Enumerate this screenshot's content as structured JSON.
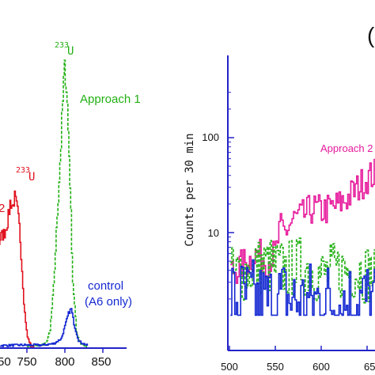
{
  "colors": {
    "green": "#22b014",
    "red": "#e0121e",
    "blue": "#1428d2",
    "magenta": "#e61a9c",
    "axis": "#2323c8",
    "text": "#111111"
  },
  "chart_data": [
    {
      "type": "line",
      "panel": "left (cropped)",
      "xlabel": "",
      "ylabel": "",
      "xlim": [
        700,
        850
      ],
      "x_ticks": [
        750,
        800,
        850
      ],
      "x_tick_labels": [
        "750",
        "800",
        "850"
      ],
      "x_tick_partial_label": "50",
      "grid": false,
      "annotations": [
        {
          "text_super": "233",
          "text_main": "U",
          "near_series": "Approach 1 (green)"
        },
        {
          "text_super": "233",
          "text_main": "U",
          "near_series": "Approach 2 (red)"
        },
        {
          "text": "Approach 1",
          "series": "green"
        },
        {
          "text": "control",
          "series": "blue"
        },
        {
          "text": "(A6 only)",
          "series": "blue"
        },
        {
          "text": "2",
          "series": "red",
          "note": "partially cropped label"
        }
      ],
      "series": [
        {
          "name": "Approach 1",
          "color": "#22b014",
          "style": "dashed",
          "x": [
            750,
            765,
            775,
            780,
            785,
            790,
            795,
            798,
            800,
            802,
            806,
            810,
            815,
            820,
            830
          ],
          "y": [
            0,
            2,
            6,
            22,
            85,
            190,
            290,
            360,
            382,
            350,
            240,
            90,
            20,
            5,
            0
          ]
        },
        {
          "name": "Approach 2",
          "color": "#e0121e",
          "style": "solid",
          "x": [
            700,
            705,
            710,
            715,
            720,
            725,
            728,
            731,
            733,
            735,
            737,
            740,
            743,
            746,
            750,
            755,
            760
          ],
          "y": [
            90,
            110,
            130,
            150,
            155,
            175,
            200,
            190,
            205,
            195,
            185,
            160,
            110,
            55,
            15,
            2,
            0
          ]
        },
        {
          "name": "control (A6 only)",
          "color": "#1428d2",
          "style": "solid",
          "x": [
            700,
            740,
            770,
            785,
            795,
            800,
            805,
            808,
            812,
            818,
            830
          ],
          "y": [
            2,
            3,
            3,
            5,
            12,
            30,
            48,
            52,
            30,
            8,
            2
          ]
        }
      ]
    },
    {
      "type": "line",
      "panel": "right (cropped)",
      "panel_label": "(",
      "xlabel": "",
      "ylabel": "Counts per 30 min",
      "y_scale": "log",
      "ylim": [
        1.35,
        330
      ],
      "xlim": [
        500,
        663
      ],
      "x_ticks": [
        500,
        550,
        600
      ],
      "x_tick_labels": [
        "500",
        "550",
        "600"
      ],
      "x_tick_partial_label": "65",
      "y_ticks": [
        10,
        100
      ],
      "y_tick_labels": [
        "10",
        "100"
      ],
      "grid": false,
      "annotations": [
        {
          "text": "Approach 2",
          "series": "magenta"
        }
      ],
      "series": [
        {
          "name": "Approach 2",
          "color": "#e61a9c",
          "style": "solid",
          "x": [
            505,
            520,
            530,
            540,
            550,
            555,
            560,
            570,
            580,
            590,
            600,
            610,
            620,
            630,
            640,
            650,
            660
          ],
          "y": [
            4,
            5,
            6,
            5,
            6,
            11,
            10,
            14,
            15,
            18,
            17,
            18,
            20,
            24,
            30,
            38,
            42
          ]
        },
        {
          "name": "",
          "color": "#22b014",
          "style": "dashed",
          "x": [
            505,
            520,
            540,
            560,
            580,
            600,
            620,
            640,
            660
          ],
          "y": [
            3.5,
            4,
            4.5,
            4,
            4.5,
            3.5,
            4,
            4,
            3.5
          ]
        },
        {
          "name": "",
          "color": "#1428d2",
          "style": "solid",
          "x": [
            505,
            520,
            540,
            560,
            580,
            600,
            620,
            640,
            660
          ],
          "y": [
            2,
            2,
            1.8,
            2,
            1.8,
            2,
            1.8,
            2,
            1.8
          ]
        }
      ]
    }
  ]
}
